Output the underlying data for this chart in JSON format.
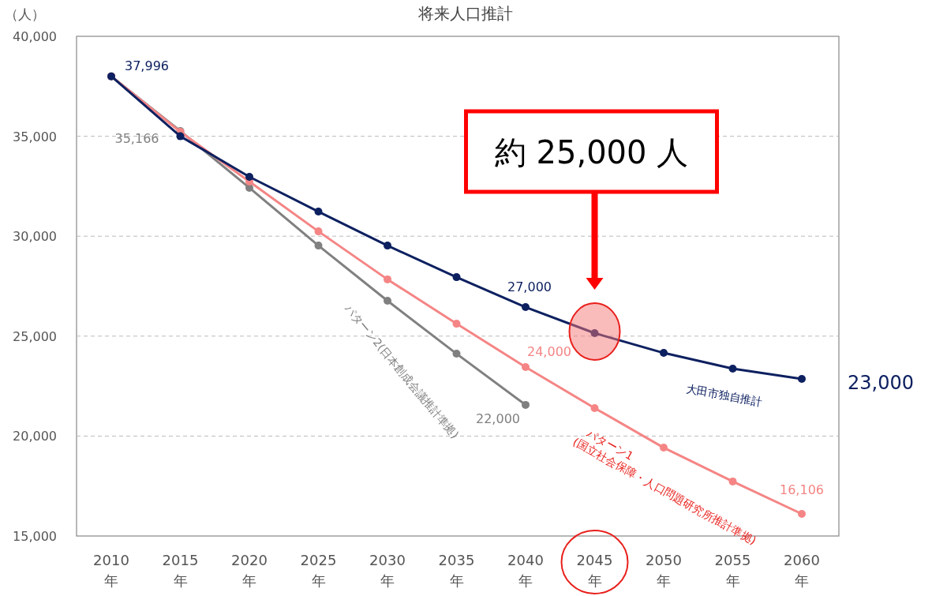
{
  "chart_data": {
    "type": "line",
    "title": "将来人口推計",
    "ylabel": "（人）",
    "categories": [
      "2010年",
      "2015年",
      "2020年",
      "2025年",
      "2030年",
      "2035年",
      "2040年",
      "2045年",
      "2050年",
      "2055年",
      "2060年"
    ],
    "series": [
      {
        "name": "大田市独自推計",
        "color": "#0d2060",
        "values": [
          37996,
          35000,
          32970,
          31230,
          29530,
          27950,
          26450,
          25150,
          24160,
          23370,
          22860
        ],
        "value_labels": [
          "37,996",
          null,
          null,
          null,
          null,
          null,
          null,
          null,
          null,
          null,
          null
        ]
      },
      {
        "name": "パターン1(国立社会保障・人口問題研究所推計準拠)",
        "color": "#f58585",
        "values": [
          38000,
          35220,
          32730,
          30240,
          27840,
          25620,
          23450,
          21400,
          19420,
          17730,
          16106
        ],
        "value_labels": [
          null,
          null,
          null,
          null,
          null,
          null,
          null,
          null,
          null,
          null,
          "16,106"
        ]
      },
      {
        "name": "パターン2(日本創成会議推計準拠)",
        "color": "#808080",
        "values": [
          38000,
          35260,
          32420,
          29530,
          26770,
          24120,
          21560,
          null,
          null,
          null,
          null
        ]
      }
    ],
    "ylim": [
      15000,
      40000
    ],
    "yticks": [
      {
        "value": 15000,
        "label": "15,000"
      },
      {
        "value": 20000,
        "label": "20,000"
      },
      {
        "value": 25000,
        "label": "25,000"
      },
      {
        "value": 30000,
        "label": "30,000"
      },
      {
        "value": 35000,
        "label": "35,000"
      },
      {
        "value": 40000,
        "label": "40,000"
      }
    ],
    "grid": "y",
    "marker": "circle",
    "line_style": "solid",
    "annotations": [
      "約 25,000 人",
      "27,000",
      "23,000",
      "24,000",
      "35,166",
      "22,000"
    ]
  }
}
